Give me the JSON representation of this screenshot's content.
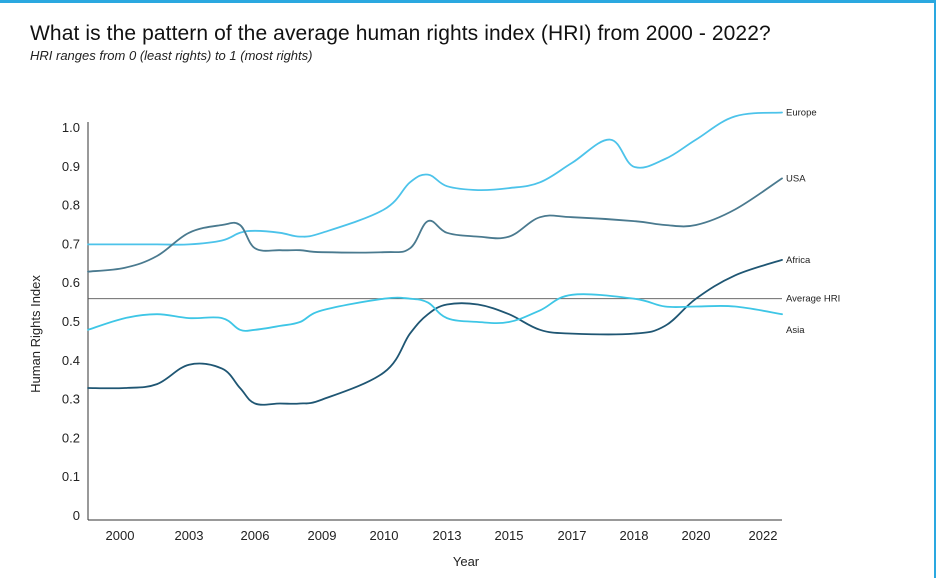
{
  "page": {
    "title": "What is the pattern of the average human rights index (HRI)  from 2000 - 2022?",
    "subtitle": "HRI ranges from 0 (least rights) to 1 (most rights)"
  },
  "chart_data": {
    "type": "line",
    "xlabel": "Year",
    "ylabel": "Human Rights Index",
    "x_ticks": [
      "2000",
      "2003",
      "2006",
      "2009",
      "2010",
      "2013",
      "2015",
      "2017",
      "2018",
      "2020",
      "2022"
    ],
    "y_ticks": [
      {
        "value": 0,
        "label": "0"
      },
      {
        "value": 0.1,
        "label": "0.1"
      },
      {
        "value": 0.2,
        "label": "0.2"
      },
      {
        "value": 0.3,
        "label": "0.3"
      },
      {
        "value": 0.4,
        "label": "0.4"
      },
      {
        "value": 0.5,
        "label": "0.5"
      },
      {
        "value": 0.6,
        "label": "0.6"
      },
      {
        "value": 0.7,
        "label": "0.7"
      },
      {
        "value": 0.8,
        "label": "0.8"
      },
      {
        "value": 0.9,
        "label": "0.9"
      },
      {
        "value": 1.0,
        "label": "1.0"
      }
    ],
    "reference_line": {
      "name": "Average HRI",
      "value": 0.56,
      "color": "#555555"
    },
    "series": [
      {
        "name": "Europe",
        "color": "#4cc3ea",
        "points": [
          [
            "2000",
            0.7
          ],
          [
            "2001",
            0.7
          ],
          [
            "2002",
            0.7
          ],
          [
            "2003",
            0.7
          ],
          [
            "2004",
            0.71
          ],
          [
            "2005",
            0.73
          ],
          [
            "2006",
            0.735
          ],
          [
            "2007",
            0.73
          ],
          [
            "2008",
            0.72
          ],
          [
            "2009",
            0.73
          ],
          [
            "2010",
            0.79
          ],
          [
            "2011",
            0.86
          ],
          [
            "2012",
            0.88
          ],
          [
            "2013",
            0.85
          ],
          [
            "2014",
            0.84
          ],
          [
            "2015",
            0.845
          ],
          [
            "2016",
            0.86
          ],
          [
            "2017",
            0.91
          ],
          [
            "2017.5",
            0.97
          ],
          [
            "2018",
            0.9
          ],
          [
            "2019",
            0.92
          ],
          [
            "2020",
            0.97
          ],
          [
            "2021",
            1.03
          ],
          [
            "2022",
            1.04
          ]
        ]
      },
      {
        "name": "USA",
        "color": "#4a7a8f",
        "points": [
          [
            "2000",
            0.63
          ],
          [
            "2001",
            0.64
          ],
          [
            "2002",
            0.67
          ],
          [
            "2003",
            0.73
          ],
          [
            "2004",
            0.75
          ],
          [
            "2005",
            0.75
          ],
          [
            "2006",
            0.69
          ],
          [
            "2007",
            0.685
          ],
          [
            "2008",
            0.685
          ],
          [
            "2009",
            0.68
          ],
          [
            "2010",
            0.68
          ],
          [
            "2011",
            0.69
          ],
          [
            "2012",
            0.76
          ],
          [
            "2013",
            0.73
          ],
          [
            "2014",
            0.72
          ],
          [
            "2015",
            0.72
          ],
          [
            "2016",
            0.77
          ],
          [
            "2017",
            0.77
          ],
          [
            "2018",
            0.76
          ],
          [
            "2019",
            0.75
          ],
          [
            "2020",
            0.75
          ],
          [
            "2021",
            0.79
          ],
          [
            "2022",
            0.87
          ]
        ]
      },
      {
        "name": "Africa",
        "color": "#1f5673",
        "points": [
          [
            "2000",
            0.33
          ],
          [
            "2001",
            0.33
          ],
          [
            "2002",
            0.34
          ],
          [
            "2003",
            0.39
          ],
          [
            "2004",
            0.38
          ],
          [
            "2005",
            0.33
          ],
          [
            "2006",
            0.29
          ],
          [
            "2007",
            0.29
          ],
          [
            "2008",
            0.29
          ],
          [
            "2009",
            0.3
          ],
          [
            "2010",
            0.37
          ],
          [
            "2011",
            0.47
          ],
          [
            "2012",
            0.52
          ],
          [
            "2013",
            0.545
          ],
          [
            "2014",
            0.545
          ],
          [
            "2015",
            0.52
          ],
          [
            "2016",
            0.48
          ],
          [
            "2017",
            0.47
          ],
          [
            "2018",
            0.47
          ],
          [
            "2019",
            0.49
          ],
          [
            "2020",
            0.56
          ],
          [
            "2021",
            0.62
          ],
          [
            "2022",
            0.66
          ]
        ]
      },
      {
        "name": "Asia",
        "color": "#3ec6e6",
        "points": [
          [
            "2000",
            0.48
          ],
          [
            "2001",
            0.51
          ],
          [
            "2002",
            0.52
          ],
          [
            "2003",
            0.51
          ],
          [
            "2004",
            0.51
          ],
          [
            "2005",
            0.48
          ],
          [
            "2006",
            0.48
          ],
          [
            "2007",
            0.49
          ],
          [
            "2008",
            0.5
          ],
          [
            "2009",
            0.53
          ],
          [
            "2010",
            0.56
          ],
          [
            "2011",
            0.56
          ],
          [
            "2012",
            0.55
          ],
          [
            "2013",
            0.51
          ],
          [
            "2014",
            0.5
          ],
          [
            "2015",
            0.5
          ],
          [
            "2016",
            0.53
          ],
          [
            "2017",
            0.57
          ],
          [
            "2018",
            0.56
          ],
          [
            "2019",
            0.54
          ],
          [
            "2020",
            0.54
          ],
          [
            "2021",
            0.54
          ],
          [
            "2022",
            0.52
          ]
        ]
      }
    ]
  }
}
